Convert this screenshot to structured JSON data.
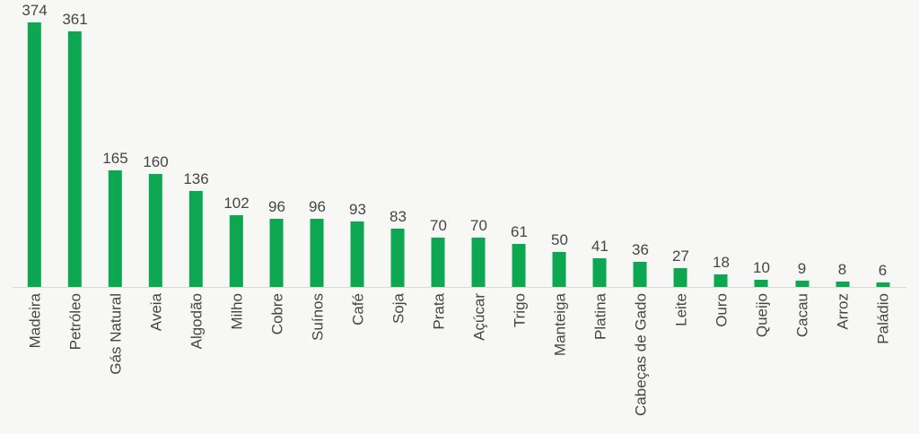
{
  "chart_data": {
    "type": "bar",
    "categories": [
      "Madeira",
      "Petróleo",
      "Gás Natural",
      "Aveia",
      "Algodão",
      "Milho",
      "Cobre",
      "Suínos",
      "Café",
      "Soja",
      "Prata",
      "Açúcar",
      "Trigo",
      "Manteiga",
      "Platina",
      "Cabeças de Gado",
      "Leite",
      "Ouro",
      "Queijo",
      "Cacau",
      "Arroz",
      "Paládio"
    ],
    "values": [
      374,
      361,
      165,
      160,
      136,
      102,
      96,
      96,
      93,
      83,
      70,
      70,
      61,
      50,
      41,
      36,
      27,
      18,
      10,
      9,
      8,
      6
    ],
    "title": "",
    "xlabel": "",
    "ylabel": "",
    "ylim": [
      0,
      374
    ],
    "data_labels": true,
    "legend": false,
    "grid": false,
    "bar_color": "#0ca750",
    "text_color": "#454545",
    "background_color": "#f7f7f5",
    "axis_line_color": "#d8d8d5"
  }
}
